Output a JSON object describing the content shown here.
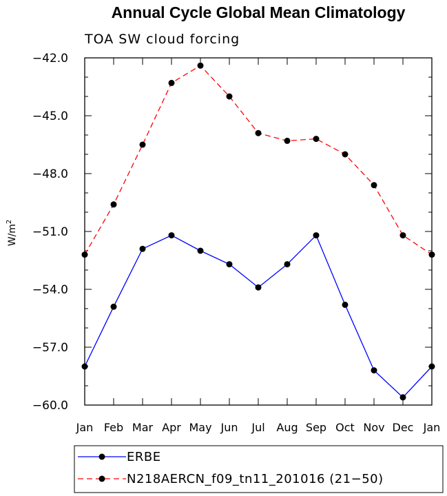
{
  "chart_data": {
    "type": "line",
    "title": "Annual Cycle Global Mean Climatology",
    "subtitle": "TOA SW cloud forcing",
    "ylabel": "W/m",
    "ylabel_superscript": "2",
    "xlabel": "",
    "ylim": [
      -60.0,
      -42.0
    ],
    "yticks": [
      -42.0,
      -45.0,
      -48.0,
      -51.0,
      -54.0,
      -57.0,
      -60.0
    ],
    "ytick_labels": [
      "−42.0",
      "−45.0",
      "−48.0",
      "−51.0",
      "−54.0",
      "−57.0",
      "−60.0"
    ],
    "categories": [
      "Jan",
      "Feb",
      "Mar",
      "Apr",
      "May",
      "Jun",
      "Jul",
      "Aug",
      "Sep",
      "Oct",
      "Nov",
      "Dec",
      "Jan"
    ],
    "grid": false,
    "legend_position": "bottom",
    "series": [
      {
        "name": "ERBE",
        "color": "#0000ff",
        "line_style": "solid",
        "marker": "circle",
        "values": [
          -58.0,
          -54.9,
          -51.9,
          -51.2,
          -52.0,
          -52.7,
          -53.9,
          -52.7,
          -51.2,
          -54.8,
          -58.2,
          -59.6,
          -58.0
        ]
      },
      {
        "name": "N218AERCN_f09_tn11_201016 (21−50)",
        "color": "#ff0000",
        "line_style": "dashed",
        "marker": "circle",
        "values": [
          -52.2,
          -49.6,
          -46.5,
          -43.3,
          -42.4,
          -44.0,
          -45.9,
          -46.3,
          -46.2,
          -47.0,
          -48.6,
          -51.2,
          -52.2
        ]
      }
    ]
  }
}
